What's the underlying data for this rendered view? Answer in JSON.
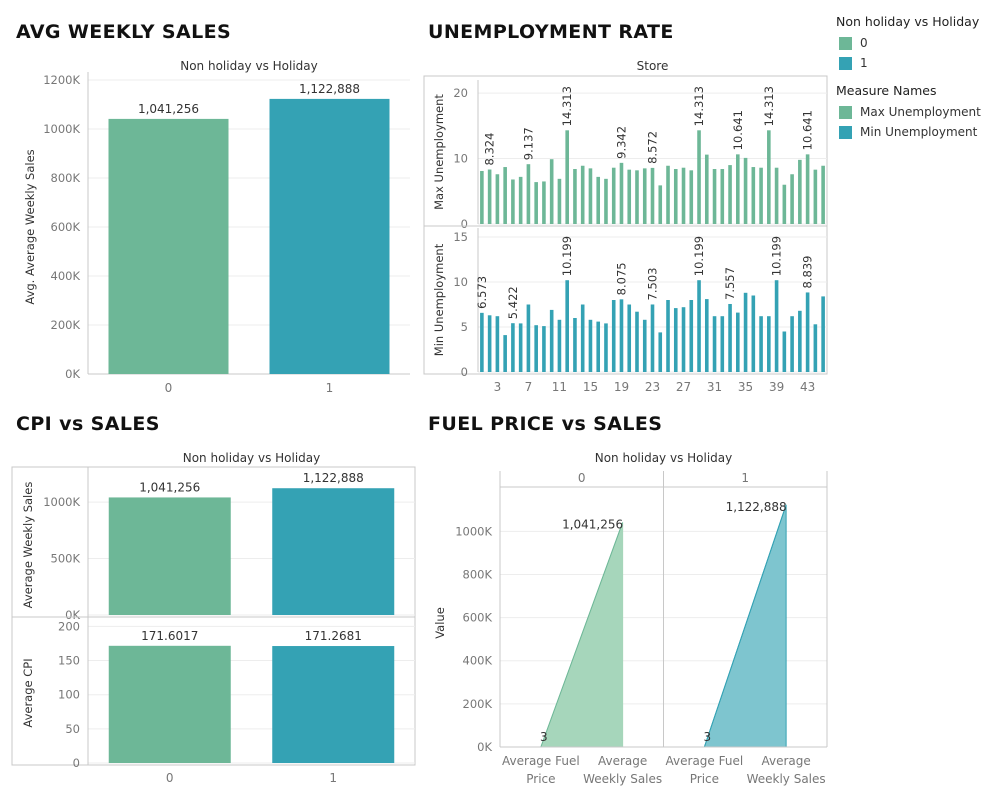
{
  "colors": {
    "series0": "#6db797",
    "series1": "#34a2b4",
    "series0_area": "#a6d6bb",
    "series1_area": "#7ec5cf"
  },
  "titles": {
    "avg_weekly_sales": "AVG WEEKLY SALES",
    "unemployment_rate": "UNEMPLOYMENT RATE",
    "cpi_vs_sales": "CPI vs SALES",
    "fuel_price_vs_sales": "FUEL PRICE vs SALES"
  },
  "legend": {
    "holiday_title": "Non holiday vs Holiday",
    "holiday_items": [
      "0",
      "1"
    ],
    "measure_title": "Measure Names",
    "measure_items": [
      "Max Unemployment",
      "Min Unemployment"
    ]
  },
  "chart_data": [
    {
      "id": "avg_weekly_sales",
      "type": "bar",
      "header": "Non holiday vs Holiday",
      "categories": [
        "0",
        "1"
      ],
      "values": [
        1041256,
        1122888
      ],
      "labels": [
        "1,041,256",
        "1,122,888"
      ],
      "ylabel": "Avg. Average Weekly Sales",
      "ylim": [
        0,
        1200000
      ],
      "yticks": [
        0,
        200000,
        400000,
        600000,
        800000,
        1000000,
        1200000
      ],
      "ytick_labels": [
        "0K",
        "200K",
        "400K",
        "600K",
        "800K",
        "1000K",
        "1200K"
      ]
    },
    {
      "id": "unemployment_rate",
      "type": "bar",
      "header": "Store",
      "stores": [
        1,
        2,
        3,
        4,
        5,
        6,
        7,
        8,
        9,
        10,
        11,
        12,
        13,
        14,
        15,
        16,
        17,
        18,
        19,
        20,
        21,
        22,
        23,
        24,
        25,
        26,
        27,
        28,
        29,
        30,
        31,
        32,
        33,
        34,
        35,
        36,
        37,
        38,
        39,
        40,
        41,
        42,
        43,
        44,
        45
      ],
      "xtick_labels": [
        "3",
        "7",
        "11",
        "15",
        "19",
        "23",
        "27",
        "31",
        "35",
        "39",
        "43"
      ],
      "xtick_stores": [
        3,
        7,
        11,
        15,
        19,
        23,
        27,
        31,
        35,
        39,
        43
      ],
      "series": [
        {
          "name": "Max Unemployment",
          "ylabel": "Max Unemployment",
          "ylim": [
            0,
            22
          ],
          "yticks": [
            0,
            10,
            20
          ],
          "values": [
            8.1,
            8.324,
            7.6,
            8.7,
            6.8,
            7.2,
            9.137,
            6.4,
            6.5,
            9.9,
            6.9,
            14.313,
            8.4,
            8.9,
            8.5,
            7.2,
            6.9,
            8.6,
            9.342,
            8.3,
            8.2,
            8.5,
            8.572,
            5.9,
            8.9,
            8.4,
            8.6,
            8.2,
            14.313,
            10.6,
            8.4,
            8.4,
            9.0,
            10.641,
            10.1,
            8.7,
            8.6,
            14.313,
            8.6,
            6.0,
            7.6,
            9.8,
            10.641,
            8.3,
            8.9
          ],
          "labeled": [
            {
              "store": 2,
              "label": "8.324"
            },
            {
              "store": 7,
              "label": "9.137"
            },
            {
              "store": 12,
              "label": "14.313"
            },
            {
              "store": 19,
              "label": "9.342"
            },
            {
              "store": 23,
              "label": "8.572"
            },
            {
              "store": 29,
              "label": "14.313"
            },
            {
              "store": 34,
              "label": "10.641"
            },
            {
              "store": 38,
              "label": "14.313"
            },
            {
              "store": 43,
              "label": "10.641"
            }
          ]
        },
        {
          "name": "Min Unemployment",
          "ylabel": "Min Unemployment",
          "ylim": [
            0,
            16
          ],
          "yticks": [
            0,
            5,
            10,
            15
          ],
          "values": [
            6.573,
            6.3,
            6.2,
            4.1,
            5.422,
            5.4,
            7.5,
            5.2,
            5.1,
            6.9,
            5.8,
            10.199,
            6.0,
            7.5,
            5.8,
            5.6,
            5.4,
            8.0,
            8.075,
            7.5,
            6.7,
            5.8,
            7.503,
            4.4,
            8.0,
            7.1,
            7.2,
            8.0,
            10.199,
            8.1,
            6.2,
            6.2,
            7.557,
            6.6,
            8.8,
            8.5,
            6.2,
            6.2,
            10.199,
            4.5,
            6.2,
            6.8,
            8.839,
            5.3,
            8.4
          ],
          "labeled": [
            {
              "store": 1,
              "label": "6.573"
            },
            {
              "store": 5,
              "label": "5.422"
            },
            {
              "store": 12,
              "label": "10.199"
            },
            {
              "store": 19,
              "label": "8.075"
            },
            {
              "store": 23,
              "label": "7.503"
            },
            {
              "store": 29,
              "label": "10.199"
            },
            {
              "store": 33,
              "label": "7.557"
            },
            {
              "store": 39,
              "label": "10.199"
            },
            {
              "store": 43,
              "label": "8.839"
            }
          ]
        }
      ]
    },
    {
      "id": "cpi_vs_sales",
      "type": "bar",
      "header": "Non holiday vs Holiday",
      "categories": [
        "0",
        "1"
      ],
      "series": [
        {
          "name": "Average Weekly Sales",
          "ylabel": "Average Weekly Sales",
          "values": [
            1041256,
            1122888
          ],
          "labels": [
            "1,041,256",
            "1,122,888"
          ],
          "ylim": [
            0,
            1240000
          ],
          "yticks": [
            0,
            500000,
            1000000
          ],
          "ytick_labels": [
            "0K",
            "500K",
            "1000K"
          ]
        },
        {
          "name": "Average CPI",
          "ylabel": "Average CPI",
          "values": [
            171.6017,
            171.2681
          ],
          "labels": [
            "171.6017",
            "171.2681"
          ],
          "ylim": [
            0,
            205
          ],
          "yticks": [
            0,
            50,
            100,
            150,
            200
          ],
          "ytick_labels": [
            "0",
            "50",
            "100",
            "150",
            "200"
          ]
        }
      ]
    },
    {
      "id": "fuel_price_vs_sales",
      "type": "area",
      "header": "Non holiday vs Holiday",
      "panels": [
        {
          "category": "0",
          "points": [
            {
              "x": "Average Fuel Price",
              "y": 3,
              "label": "3"
            },
            {
              "x": "Average Weekly Sales",
              "y": 1041256,
              "label": "1,041,256"
            }
          ]
        },
        {
          "category": "1",
          "points": [
            {
              "x": "Average Fuel Price",
              "y": 3,
              "label": "3"
            },
            {
              "x": "Average Weekly Sales",
              "y": 1122888,
              "label": "1,122,888"
            }
          ]
        }
      ],
      "x_categories": [
        [
          "Average Fuel",
          "Price"
        ],
        [
          "Average",
          "Weekly Sales"
        ]
      ],
      "ylabel": "Value",
      "ylim": [
        0,
        1150000
      ],
      "yticks": [
        0,
        200000,
        400000,
        600000,
        800000,
        1000000
      ],
      "ytick_labels": [
        "0K",
        "200K",
        "400K",
        "600K",
        "800K",
        "1000K"
      ]
    }
  ]
}
